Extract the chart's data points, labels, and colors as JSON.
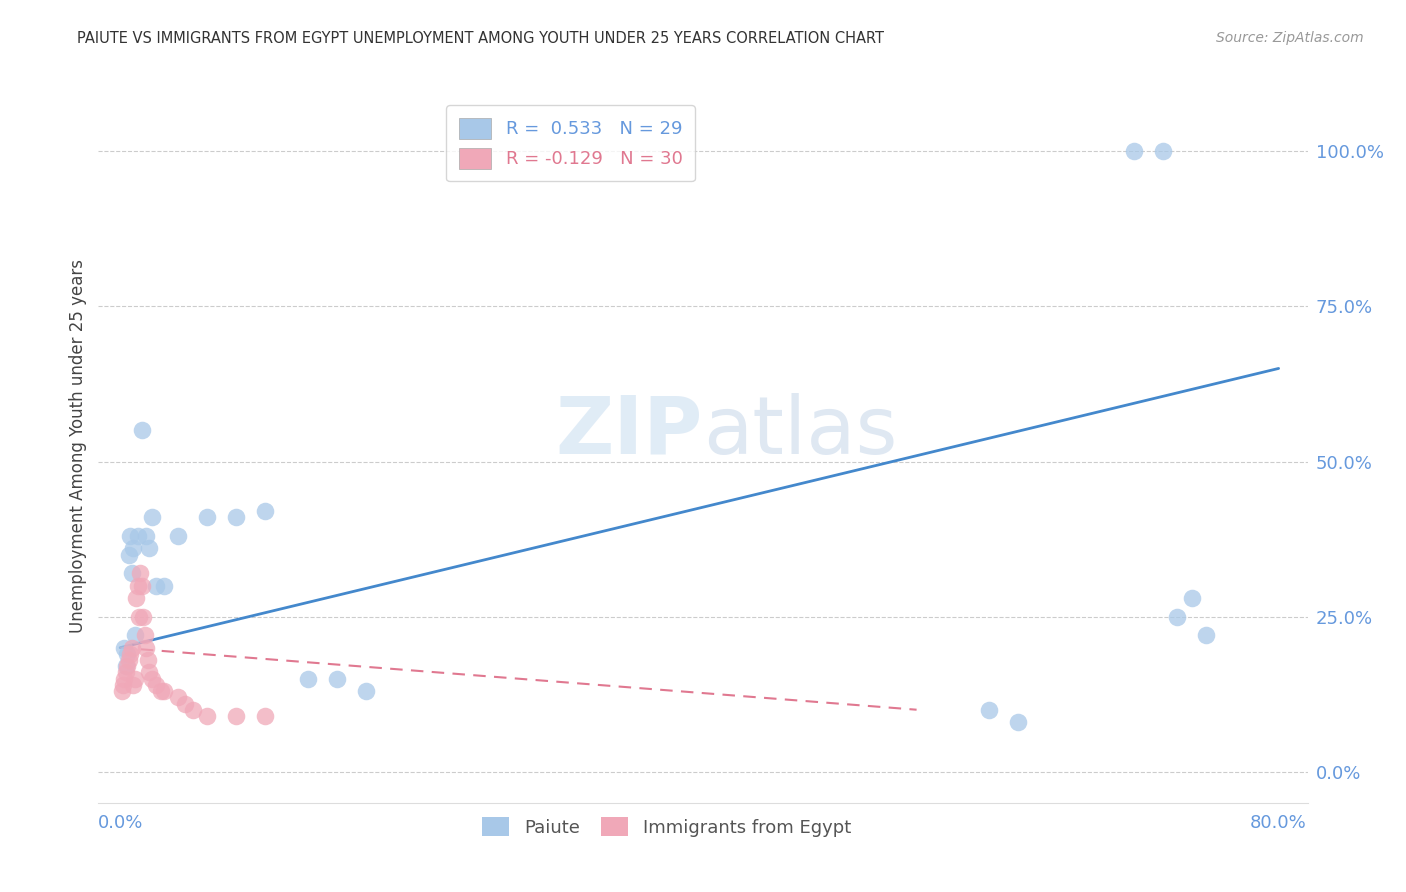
{
  "title": "PAIUTE VS IMMIGRANTS FROM EGYPT UNEMPLOYMENT AMONG YOUTH UNDER 25 YEARS CORRELATION CHART",
  "source": "Source: ZipAtlas.com",
  "ylabel": "Unemployment Among Youth under 25 years",
  "R_paiute": 0.533,
  "N_paiute": 29,
  "R_egypt": -0.129,
  "N_egypt": 30,
  "paiute_color": "#a8c8e8",
  "egypt_color": "#f0a8b8",
  "paiute_line_color": "#4488cc",
  "egypt_line_color": "#e07890",
  "watermark_color": "#ddeeff",
  "axis_label_color": "#6699dd",
  "tick_color": "#6699dd",
  "paiute_x": [
    0.003,
    0.004,
    0.005,
    0.006,
    0.007,
    0.008,
    0.009,
    0.01,
    0.012,
    0.015,
    0.018,
    0.02,
    0.022,
    0.025,
    0.03,
    0.04,
    0.06,
    0.08,
    0.1,
    0.13,
    0.15,
    0.17,
    0.6,
    0.62,
    0.7,
    0.72,
    0.73,
    0.74,
    0.75
  ],
  "paiute_y": [
    0.2,
    0.17,
    0.19,
    0.35,
    0.38,
    0.32,
    0.36,
    0.22,
    0.38,
    0.55,
    0.38,
    0.36,
    0.41,
    0.3,
    0.3,
    0.38,
    0.41,
    0.41,
    0.42,
    0.15,
    0.15,
    0.13,
    0.1,
    0.08,
    1.0,
    1.0,
    0.25,
    0.28,
    0.22
  ],
  "egypt_x": [
    0.001,
    0.002,
    0.003,
    0.004,
    0.005,
    0.006,
    0.007,
    0.008,
    0.009,
    0.01,
    0.011,
    0.012,
    0.013,
    0.014,
    0.015,
    0.016,
    0.017,
    0.018,
    0.019,
    0.02,
    0.022,
    0.025,
    0.028,
    0.03,
    0.04,
    0.045,
    0.05,
    0.06,
    0.08,
    0.1
  ],
  "egypt_y": [
    0.13,
    0.14,
    0.15,
    0.16,
    0.17,
    0.18,
    0.19,
    0.2,
    0.14,
    0.15,
    0.28,
    0.3,
    0.25,
    0.32,
    0.3,
    0.25,
    0.22,
    0.2,
    0.18,
    0.16,
    0.15,
    0.14,
    0.13,
    0.13,
    0.12,
    0.11,
    0.1,
    0.09,
    0.09,
    0.09
  ],
  "xlim": [
    -0.015,
    0.82
  ],
  "ylim": [
    -0.05,
    1.1
  ],
  "yticks": [
    0.0,
    0.25,
    0.5,
    0.75,
    1.0
  ],
  "ytick_labels": [
    "0.0%",
    "25.0%",
    "50.0%",
    "75.0%",
    "100.0%"
  ],
  "paiute_line_x": [
    0.0,
    0.8
  ],
  "paiute_line_y": [
    0.2,
    0.65
  ],
  "egypt_line_x": [
    0.0,
    0.55
  ],
  "egypt_line_y": [
    0.2,
    0.1
  ]
}
